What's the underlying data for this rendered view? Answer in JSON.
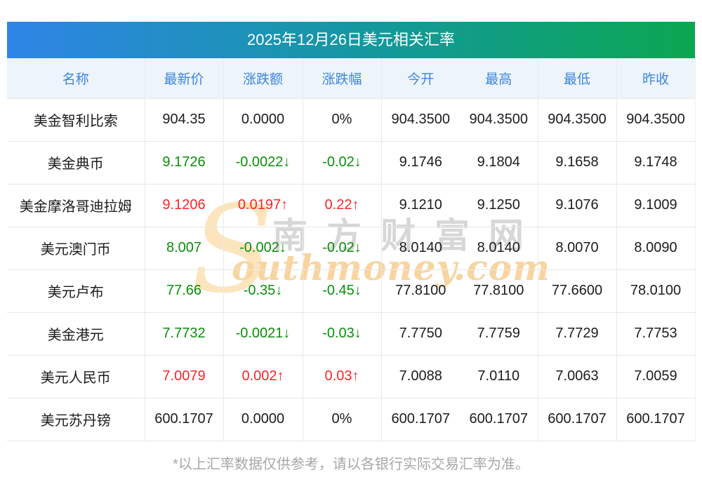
{
  "chart_data": {
    "type": "table",
    "title": "2025年12月26日美元相关汇率",
    "columns": [
      "名称",
      "最新价",
      "涨跌额",
      "涨跌幅",
      "今开",
      "最高",
      "最低",
      "昨收"
    ],
    "rows": [
      {
        "name": "美金智利比索",
        "values": [
          "904.35",
          "0.0000",
          "0%",
          "904.3500",
          "904.3500",
          "904.3500",
          "904.3500"
        ],
        "trend": "flat"
      },
      {
        "name": "美金典币",
        "values": [
          "9.1726",
          "-0.0022↓",
          "-0.02↓",
          "9.1746",
          "9.1804",
          "9.1658",
          "9.1748"
        ],
        "trend": "down"
      },
      {
        "name": "美金摩洛哥迪拉姆",
        "values": [
          "9.1206",
          "0.0197↑",
          "0.22↑",
          "9.1210",
          "9.1250",
          "9.1076",
          "9.1009"
        ],
        "trend": "up"
      },
      {
        "name": "美元澳门币",
        "values": [
          "8.007",
          "-0.002↓",
          "-0.02↓",
          "8.0140",
          "8.0140",
          "8.0070",
          "8.0090"
        ],
        "trend": "down"
      },
      {
        "name": "美元卢布",
        "values": [
          "77.66",
          "-0.35↓",
          "-0.45↓",
          "77.8100",
          "77.8100",
          "77.6600",
          "78.0100"
        ],
        "trend": "down"
      },
      {
        "name": "美金港元",
        "values": [
          "7.7732",
          "-0.0021↓",
          "-0.03↓",
          "7.7750",
          "7.7759",
          "7.7729",
          "7.7753"
        ],
        "trend": "down"
      },
      {
        "name": "美元人民币",
        "values": [
          "7.0079",
          "0.002↑",
          "0.03↑",
          "7.0088",
          "7.0110",
          "7.0063",
          "7.0059"
        ],
        "trend": "up"
      },
      {
        "name": "美元苏丹镑",
        "values": [
          "600.1707",
          "0.0000",
          "0%",
          "600.1707",
          "600.1707",
          "600.1707",
          "600.1707"
        ],
        "trend": "flat"
      }
    ],
    "layout_hints": {
      "colored_value_columns": [
        "最新价",
        "涨跌额",
        "涨跌幅"
      ],
      "up_color": "#fb2525",
      "down_color": "#0a8f0a",
      "neutral_color": "#1c1c1c",
      "header_text_color": "#3b86df",
      "header_bg": "#eef4fb",
      "title_gradient": [
        "#2f85e8",
        "#0aa751"
      ]
    }
  },
  "watermark": {
    "s_glyph": "S",
    "cn_text": "南方财富网",
    "en_text": "outhmoney.com"
  },
  "footer": "*以上汇率数据仅供参考，请以各银行实际交易汇率为准。"
}
